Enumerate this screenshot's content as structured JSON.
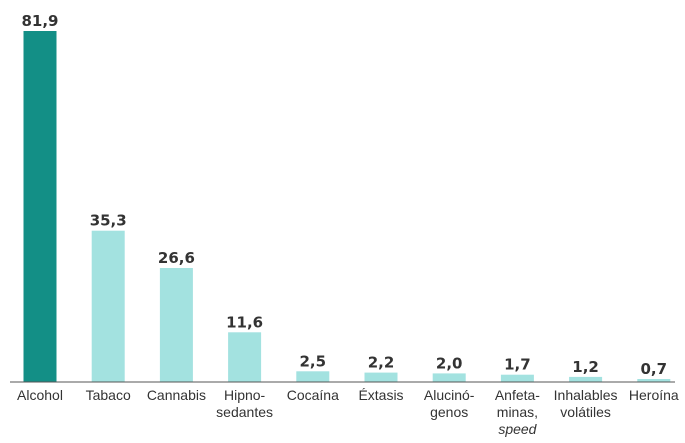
{
  "chart_data": {
    "type": "bar",
    "categories": [
      [
        "Alcohol"
      ],
      [
        "Tabaco"
      ],
      [
        "Cannabis"
      ],
      [
        "Hipno-",
        "sedantes"
      ],
      [
        "Cocaína"
      ],
      [
        "Éxtasis"
      ],
      [
        "Alucinó-",
        "genos"
      ],
      [
        "Anfeta-",
        "minas,",
        "speed"
      ],
      [
        "Inhalables",
        "volátiles"
      ],
      [
        "Heroína"
      ]
    ],
    "values": [
      81.9,
      35.3,
      26.6,
      11.6,
      2.5,
      2.2,
      2.0,
      1.7,
      1.2,
      0.7
    ],
    "value_labels": [
      "81,9",
      "35,3",
      "26,6",
      "11,6",
      "2,5",
      "2,2",
      "2,0",
      "1,7",
      "1,2",
      "0,7"
    ],
    "italic_label_lines": [
      "speed"
    ],
    "ylim": [
      0,
      81.9
    ],
    "grid": false,
    "title": "",
    "xlabel": "",
    "ylabel": "",
    "colors": {
      "highlight": "#138f86",
      "bar": "#a3e2e0",
      "axis": "#555555",
      "text": "#333333"
    }
  }
}
